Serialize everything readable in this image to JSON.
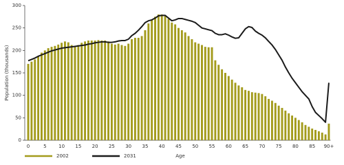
{
  "chart_data": {
    "type": "bar",
    "y_label": "Population (thousands)",
    "x_label": "Age",
    "categories": [
      "0",
      null,
      null,
      null,
      null,
      "5",
      null,
      null,
      null,
      null,
      "10",
      null,
      null,
      null,
      null,
      "15",
      null,
      null,
      null,
      null,
      "20",
      null,
      null,
      null,
      null,
      "25",
      null,
      null,
      null,
      null,
      "30",
      null,
      null,
      null,
      null,
      "35",
      null,
      null,
      null,
      null,
      "40",
      null,
      null,
      null,
      null,
      "45",
      null,
      null,
      null,
      null,
      "50",
      null,
      null,
      null,
      null,
      "55",
      null,
      null,
      null,
      null,
      "60",
      null,
      null,
      null,
      null,
      "65",
      null,
      null,
      null,
      null,
      "70",
      null,
      null,
      null,
      null,
      "75",
      null,
      null,
      null,
      null,
      "80",
      null,
      null,
      null,
      null,
      "85",
      null,
      null,
      null,
      null,
      "90+"
    ],
    "series": [
      {
        "name": "2002",
        "type": "bar",
        "color": "#a39b1c",
        "values": [
          170,
          175,
          180,
          187,
          195,
          200,
          205,
          208,
          210,
          213,
          217,
          220,
          218,
          212,
          208,
          212,
          217,
          220,
          222,
          222,
          222,
          223,
          222,
          222,
          220,
          215,
          213,
          215,
          212,
          210,
          215,
          225,
          228,
          228,
          232,
          245,
          260,
          268,
          275,
          280,
          280,
          278,
          270,
          262,
          258,
          250,
          245,
          240,
          232,
          225,
          218,
          215,
          212,
          208,
          207,
          207,
          178,
          168,
          158,
          150,
          143,
          135,
          128,
          122,
          118,
          112,
          110,
          107,
          106,
          105,
          103,
          98,
          92,
          88,
          83,
          77,
          72,
          66,
          60,
          55,
          50,
          45,
          40,
          34,
          30,
          26,
          23,
          20,
          17,
          13,
          37
        ]
      },
      {
        "name": "2031",
        "type": "line",
        "color": "#1a1a1a",
        "values": [
          177,
          180,
          183,
          187,
          190,
          193,
          196,
          199,
          201,
          203,
          205,
          206,
          207,
          208,
          209,
          210,
          211,
          212,
          214,
          215,
          217,
          218,
          219,
          219,
          218,
          218,
          219,
          221,
          222,
          222,
          225,
          233,
          238,
          245,
          253,
          262,
          266,
          268,
          272,
          277,
          278,
          278,
          272,
          266,
          268,
          271,
          271,
          269,
          267,
          265,
          262,
          256,
          250,
          248,
          246,
          244,
          238,
          235,
          235,
          237,
          234,
          230,
          227,
          228,
          238,
          248,
          253,
          251,
          243,
          238,
          234,
          228,
          220,
          212,
          202,
          190,
          178,
          163,
          150,
          138,
          128,
          118,
          108,
          100,
          92,
          75,
          62,
          55,
          48,
          40,
          128
        ]
      }
    ],
    "ylim": [
      0,
      300
    ],
    "yticks": [
      0,
      50,
      100,
      150,
      200,
      250,
      300
    ]
  }
}
